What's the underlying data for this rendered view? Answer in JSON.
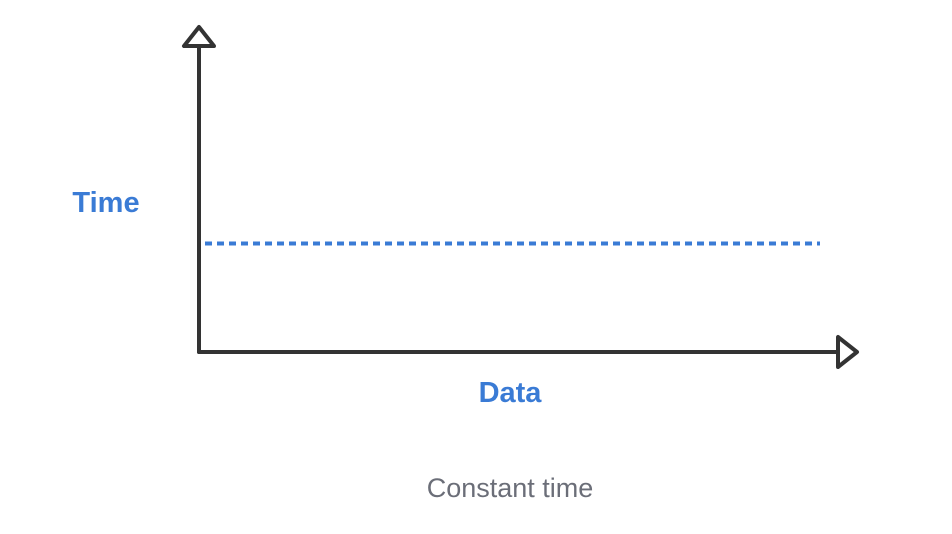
{
  "chart_data": {
    "type": "line",
    "title": "",
    "caption": "Constant time",
    "xlabel": "Data",
    "ylabel": "Time",
    "xlim": [
      0,
      10
    ],
    "ylim": [
      0,
      10
    ],
    "grid": false,
    "series": [
      {
        "x": [
          0,
          10
        ],
        "y": [
          3.5,
          3.5
        ],
        "style": "dashed"
      }
    ]
  },
  "colors": {
    "axis": "#333333",
    "accent": "#3a7bd5",
    "caption": "#6b6e78",
    "background": "#ffffff"
  }
}
